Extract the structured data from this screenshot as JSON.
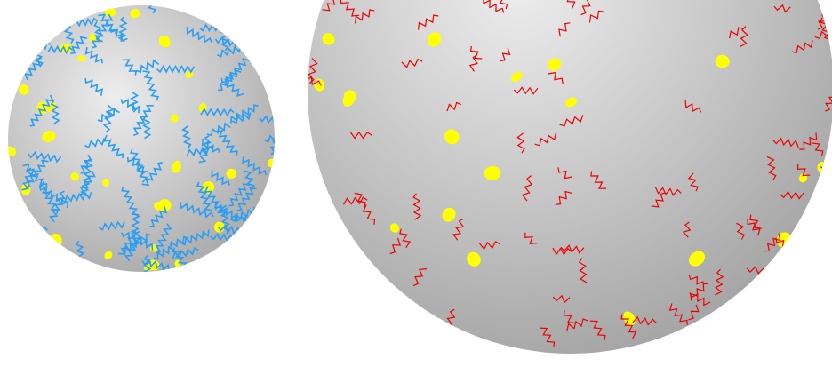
{
  "colors": {
    "background": "#ffffff",
    "sphere_light": "#ededed",
    "sphere_mid": "#c7c7c7",
    "sphere_dark": "#a6a6a6",
    "small_sphere_strands": "#2a9df4",
    "large_sphere_strands": "#f00000",
    "dots": "#ffff00"
  },
  "spheres": [
    {
      "id": "small-sphere",
      "strand_color_name": "blue",
      "dot_color_name": "yellow",
      "strand_count": 95,
      "dot_count": 30
    },
    {
      "id": "large-sphere",
      "strand_color_name": "red",
      "dot_color_name": "yellow",
      "strand_count": 110,
      "dot_count": 24
    }
  ]
}
